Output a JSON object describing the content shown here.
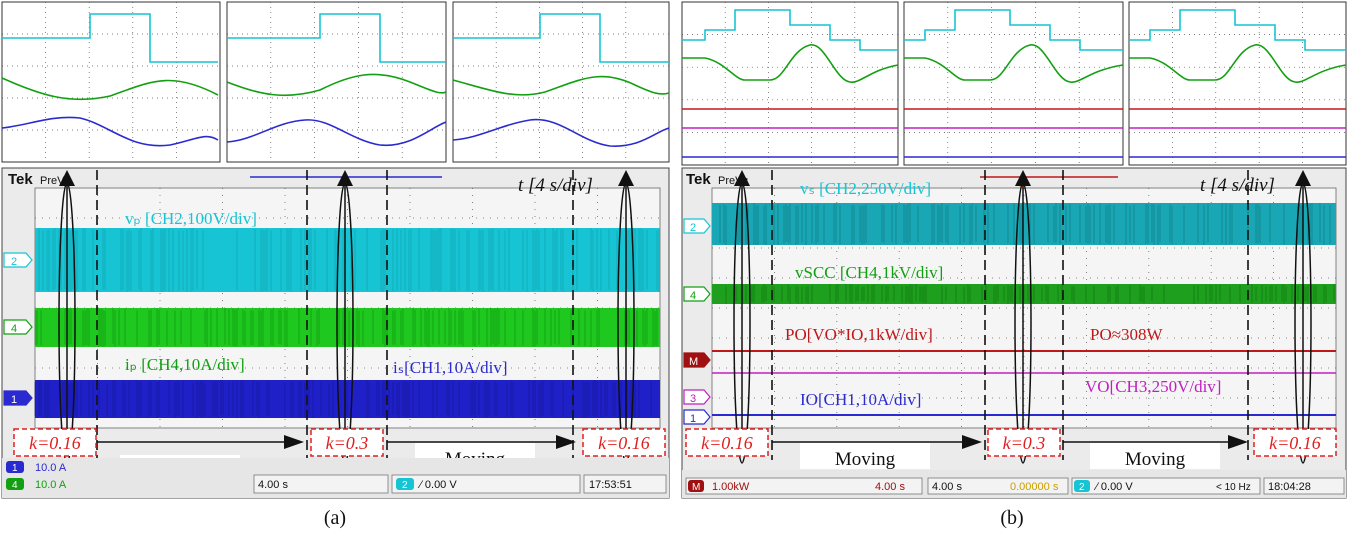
{
  "panels": [
    {
      "label": "(a)",
      "brand": "Tek",
      "mode": "PreVu",
      "time_label": "t [4 s/div]",
      "trace_labels": [
        {
          "text": "vₚ [CH2,100V/div]",
          "color": "#16c4d4"
        },
        {
          "text": "iₚ [CH4,10A/div]",
          "color": "#12a012"
        },
        {
          "text": "iₛ[CH1,10A/div]",
          "color": "#2a2ad0"
        }
      ],
      "k_values": [
        "k=0.16",
        "k=0.3",
        "k=0.16"
      ],
      "moving_label": "Moving",
      "channel_markers": [
        "2",
        "4",
        "1"
      ],
      "status": {
        "ch1": "1",
        "ch1_value": "10.0 A",
        "ch4": "4",
        "ch4_value": "10.0 A",
        "timebase": "4.00 s",
        "trigger_channel": "2",
        "trigger_value": "∕ 0.00 V",
        "clock": "17:53:51"
      }
    },
    {
      "label": "(b)",
      "brand": "Tek",
      "mode": "PreVu",
      "time_label": "t [4 s/div]",
      "trace_labels": [
        {
          "text": "vₛ [CH2,250V/div]",
          "color": "#16c4d4"
        },
        {
          "text": "vSCC [CH4,1kV/div]",
          "color": "#12a012"
        },
        {
          "text": "PO[VO*IO,1kW/div]",
          "color": "#c01818"
        },
        {
          "text": "PO≈308W",
          "color": "#c01818"
        },
        {
          "text": "VO[CH3,250V/div]",
          "color": "#c020c0"
        },
        {
          "text": "IO[CH1,10A/div]",
          "color": "#2a2ad0"
        }
      ],
      "k_values": [
        "k=0.16",
        "k=0.3",
        "k=0.16"
      ],
      "moving_label": "Moving",
      "channel_markers": [
        "2",
        "4",
        "M",
        "3",
        "1"
      ],
      "status": {
        "math": "M",
        "math_value": "1.00kW",
        "math_time": "4.00 s",
        "timebase": "4.00 s",
        "offset": "0.00000 s",
        "trigger_channel": "2",
        "trigger_value": "∕ 0.00 V",
        "freq": "< 10 Hz",
        "clock": "18:04:28"
      }
    }
  ],
  "colors": {
    "cyan": "#16c4d4",
    "green": "#12a012",
    "blue": "#2a2ad0",
    "red": "#c01818",
    "magenta": "#c020c0",
    "k_box": "#e02020"
  }
}
